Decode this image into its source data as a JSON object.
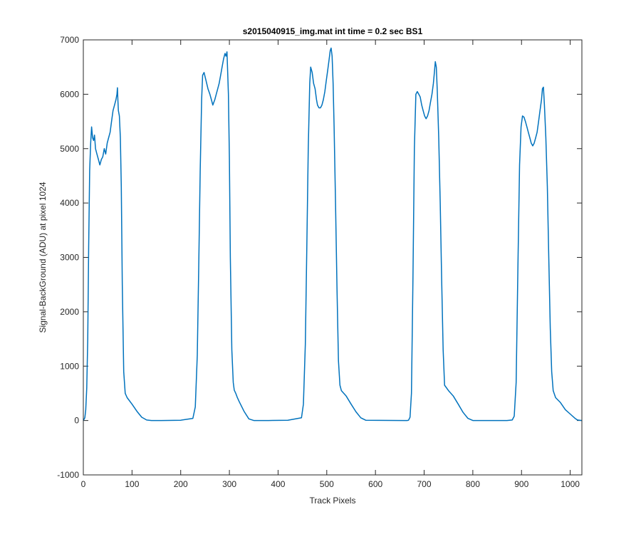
{
  "chart_data": {
    "type": "line",
    "title": "s2015040915_img.mat int time = 0.2 sec   BS1",
    "xlabel": "Track Pixels",
    "ylabel": "Signal-BackGround (ADU) at pixel 1024",
    "xlim": [
      0,
      1024
    ],
    "ylim": [
      -1000,
      7000
    ],
    "xticks": [
      0,
      100,
      200,
      300,
      400,
      500,
      600,
      700,
      800,
      900,
      1000
    ],
    "yticks": [
      -1000,
      0,
      1000,
      2000,
      3000,
      4000,
      5000,
      6000,
      7000
    ],
    "grid": false,
    "line_color": "#0072bd",
    "series": [
      {
        "x": [
          0,
          3,
          5,
          7,
          9,
          11,
          13,
          15,
          17,
          19,
          21,
          23,
          25,
          28,
          31,
          34,
          37,
          40,
          43,
          46,
          49,
          52,
          55,
          58,
          61,
          64,
          67,
          69,
          70,
          71,
          72,
          74,
          76,
          78,
          80,
          83,
          86,
          90,
          100,
          110,
          120,
          130,
          140,
          150,
          160,
          200,
          225,
          230,
          234,
          237,
          240,
          243,
          245,
          248,
          252,
          256,
          260,
          263,
          266,
          268,
          270,
          273,
          276,
          279,
          282,
          285,
          288,
          291,
          293,
          295,
          296,
          298,
          300,
          302,
          305,
          308,
          310,
          313,
          316,
          320,
          330,
          340,
          350,
          360,
          370,
          380,
          420,
          448,
          452,
          456,
          459,
          462,
          465,
          467,
          470,
          473,
          476,
          479,
          481,
          484,
          487,
          490,
          493,
          496,
          499,
          502,
          505,
          507,
          509,
          511,
          513,
          515,
          518,
          521,
          524,
          527,
          530,
          540,
          550,
          560,
          570,
          580,
          660,
          665,
          668,
          671,
          674,
          677,
          680,
          683,
          686,
          689,
          692,
          695,
          698,
          701,
          704,
          707,
          710,
          713,
          716,
          719,
          721,
          723,
          725,
          727,
          730,
          733,
          736,
          739,
          742,
          750,
          760,
          770,
          780,
          790,
          800,
          870,
          881,
          885,
          889,
          893,
          896,
          899,
          902,
          905,
          908,
          911,
          914,
          917,
          920,
          923,
          926,
          929,
          932,
          935,
          938,
          941,
          943,
          945,
          947,
          950,
          953,
          956,
          959,
          962,
          965,
          970,
          980,
          990,
          1000,
          1010,
          1015,
          1024
        ],
        "y": [
          0,
          50,
          200,
          600,
          1500,
          3200,
          4600,
          5100,
          5400,
          5200,
          5150,
          5250,
          5000,
          4900,
          4800,
          4700,
          4800,
          4850,
          5000,
          4900,
          5100,
          5200,
          5300,
          5500,
          5700,
          5800,
          5900,
          6000,
          6120,
          5900,
          5700,
          5600,
          5200,
          4300,
          2500,
          900,
          500,
          420,
          300,
          170,
          60,
          10,
          0,
          0,
          0,
          5,
          40,
          250,
          1200,
          2800,
          4600,
          5900,
          6350,
          6400,
          6250,
          6100,
          6000,
          5900,
          5800,
          5850,
          5900,
          6000,
          6100,
          6200,
          6350,
          6500,
          6650,
          6750,
          6700,
          6780,
          6550,
          6000,
          4800,
          3000,
          1300,
          700,
          560,
          500,
          430,
          350,
          170,
          30,
          0,
          0,
          0,
          0,
          5,
          50,
          300,
          1400,
          3200,
          5000,
          6200,
          6500,
          6400,
          6200,
          6100,
          5900,
          5800,
          5750,
          5750,
          5800,
          5900,
          6050,
          6250,
          6450,
          6650,
          6800,
          6850,
          6700,
          6200,
          5400,
          4000,
          2400,
          1100,
          650,
          550,
          450,
          300,
          160,
          50,
          5,
          0,
          0,
          5,
          60,
          500,
          2600,
          5000,
          6000,
          6050,
          6000,
          5950,
          5800,
          5700,
          5600,
          5550,
          5600,
          5700,
          5850,
          6000,
          6200,
          6400,
          6600,
          6500,
          6050,
          5200,
          4000,
          2600,
          1300,
          650,
          550,
          450,
          300,
          150,
          40,
          0,
          0,
          10,
          80,
          700,
          3000,
          4700,
          5400,
          5600,
          5580,
          5500,
          5400,
          5300,
          5200,
          5100,
          5050,
          5100,
          5200,
          5300,
          5500,
          5700,
          5900,
          6100,
          6130,
          5800,
          5200,
          4300,
          3000,
          1700,
          900,
          550,
          420,
          330,
          200,
          120,
          40,
          10,
          0
        ]
      }
    ]
  }
}
